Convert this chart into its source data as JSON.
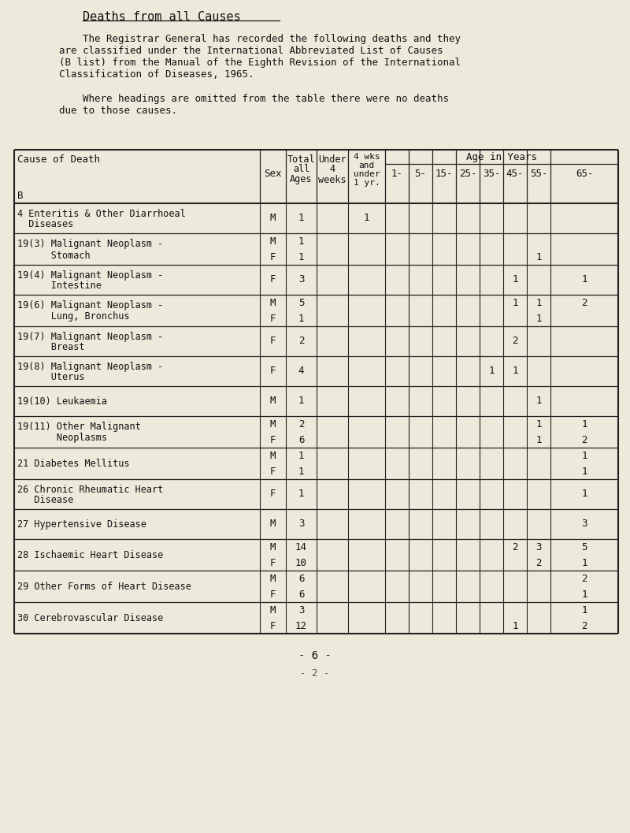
{
  "title": "Deaths from all Causes",
  "intro_text_line1": "    The Registrar General has recorded the following deaths and they",
  "intro_text_line2": "are classified under the International Abbreviated List of Causes",
  "intro_text_line3": "(B list) from the Manual of the Eighth Revision of the International",
  "intro_text_line4": "Classification of Diseases, 1965.",
  "intro_text_line5": "",
  "intro_text_line6": "    Where headings are omitted from the table there were no deaths",
  "intro_text_line7": "due to those causes.",
  "rows": [
    {
      "cause_line1": "4 Enteritis & Other Diarrhoeal",
      "cause_line2": "  Diseases",
      "sex": [
        "M"
      ],
      "total": [
        "1"
      ],
      "under4wks": [
        ""
      ],
      "wks_1yr": [
        "1"
      ],
      "age1": [
        ""
      ],
      "age5": [
        ""
      ],
      "age15": [
        ""
      ],
      "age25": [
        ""
      ],
      "age35": [
        ""
      ],
      "age45": [
        ""
      ],
      "age55": [
        ""
      ],
      "age65": [
        ""
      ]
    },
    {
      "cause_line1": "19(3) Malignant Neoplasm -",
      "cause_line2": "      Stomach",
      "sex": [
        "M",
        "F"
      ],
      "total": [
        "1",
        "1"
      ],
      "under4wks": [
        "",
        ""
      ],
      "wks_1yr": [
        "",
        ""
      ],
      "age1": [
        "",
        ""
      ],
      "age5": [
        "",
        ""
      ],
      "age15": [
        "",
        ""
      ],
      "age25": [
        "",
        ""
      ],
      "age35": [
        "",
        ""
      ],
      "age45": [
        "",
        ""
      ],
      "age55": [
        "",
        "1"
      ],
      "age65": [
        "",
        ""
      ]
    },
    {
      "cause_line1": "19(4) Malignant Neoplasm -",
      "cause_line2": "      Intestine",
      "sex": [
        "F"
      ],
      "total": [
        "3"
      ],
      "under4wks": [
        ""
      ],
      "wks_1yr": [
        ""
      ],
      "age1": [
        ""
      ],
      "age5": [
        ""
      ],
      "age15": [
        ""
      ],
      "age25": [
        ""
      ],
      "age35": [
        ""
      ],
      "age45": [
        "1"
      ],
      "age55": [
        ""
      ],
      "age65": [
        "1"
      ]
    },
    {
      "cause_line1": "19(6) Malignant Neoplasm -",
      "cause_line2": "      Lung, Bronchus",
      "sex": [
        "M",
        "F"
      ],
      "total": [
        "5",
        "1"
      ],
      "under4wks": [
        "",
        ""
      ],
      "wks_1yr": [
        "",
        ""
      ],
      "age1": [
        "",
        ""
      ],
      "age5": [
        "",
        ""
      ],
      "age15": [
        "",
        ""
      ],
      "age25": [
        "",
        ""
      ],
      "age35": [
        "",
        ""
      ],
      "age45": [
        "1",
        ""
      ],
      "age55": [
        "1",
        "1"
      ],
      "age65": [
        "2",
        ""
      ]
    },
    {
      "cause_line1": "19(7) Malignant Neoplasm -",
      "cause_line2": "      Breast",
      "sex": [
        "F"
      ],
      "total": [
        "2"
      ],
      "under4wks": [
        ""
      ],
      "wks_1yr": [
        ""
      ],
      "age1": [
        ""
      ],
      "age5": [
        ""
      ],
      "age15": [
        ""
      ],
      "age25": [
        ""
      ],
      "age35": [
        ""
      ],
      "age45": [
        "2"
      ],
      "age55": [
        ""
      ],
      "age65": [
        ""
      ]
    },
    {
      "cause_line1": "19(8) Malignant Neoplasm -",
      "cause_line2": "      Uterus",
      "sex": [
        "F"
      ],
      "total": [
        "4"
      ],
      "under4wks": [
        ""
      ],
      "wks_1yr": [
        ""
      ],
      "age1": [
        ""
      ],
      "age5": [
        ""
      ],
      "age15": [
        ""
      ],
      "age25": [
        ""
      ],
      "age35": [
        "1"
      ],
      "age45": [
        "1"
      ],
      "age55": [
        ""
      ],
      "age65": [
        ""
      ]
    },
    {
      "cause_line1": "19(10) Leukaemia",
      "cause_line2": "",
      "sex": [
        "M"
      ],
      "total": [
        "1"
      ],
      "under4wks": [
        ""
      ],
      "wks_1yr": [
        ""
      ],
      "age1": [
        ""
      ],
      "age5": [
        ""
      ],
      "age15": [
        ""
      ],
      "age25": [
        ""
      ],
      "age35": [
        ""
      ],
      "age45": [
        ""
      ],
      "age55": [
        "1"
      ],
      "age65": [
        ""
      ]
    },
    {
      "cause_line1": "19(11) Other Malignant",
      "cause_line2": "       Neoplasms",
      "sex": [
        "M",
        "F"
      ],
      "total": [
        "2",
        "6"
      ],
      "under4wks": [
        "",
        ""
      ],
      "wks_1yr": [
        "",
        ""
      ],
      "age1": [
        "",
        ""
      ],
      "age5": [
        "",
        ""
      ],
      "age15": [
        "",
        ""
      ],
      "age25": [
        "",
        ""
      ],
      "age35": [
        "",
        ""
      ],
      "age45": [
        "",
        ""
      ],
      "age55": [
        "1",
        "1"
      ],
      "age65": [
        "1",
        "2"
      ]
    },
    {
      "cause_line1": "21 Diabetes Mellitus",
      "cause_line2": "",
      "sex": [
        "M",
        "F"
      ],
      "total": [
        "1",
        "1"
      ],
      "under4wks": [
        "",
        ""
      ],
      "wks_1yr": [
        "",
        ""
      ],
      "age1": [
        "",
        ""
      ],
      "age5": [
        "",
        ""
      ],
      "age15": [
        "",
        ""
      ],
      "age25": [
        "",
        ""
      ],
      "age35": [
        "",
        ""
      ],
      "age45": [
        "",
        ""
      ],
      "age55": [
        "",
        ""
      ],
      "age65": [
        "1",
        "1"
      ]
    },
    {
      "cause_line1": "26 Chronic Rheumatic Heart",
      "cause_line2": "   Disease",
      "sex": [
        "F"
      ],
      "total": [
        "1"
      ],
      "under4wks": [
        ""
      ],
      "wks_1yr": [
        ""
      ],
      "age1": [
        ""
      ],
      "age5": [
        ""
      ],
      "age15": [
        ""
      ],
      "age25": [
        ""
      ],
      "age35": [
        ""
      ],
      "age45": [
        ""
      ],
      "age55": [
        ""
      ],
      "age65": [
        "1"
      ]
    },
    {
      "cause_line1": "27 Hypertensive Disease",
      "cause_line2": "",
      "sex": [
        "M"
      ],
      "total": [
        "3"
      ],
      "under4wks": [
        ""
      ],
      "wks_1yr": [
        ""
      ],
      "age1": [
        ""
      ],
      "age5": [
        ""
      ],
      "age15": [
        ""
      ],
      "age25": [
        ""
      ],
      "age35": [
        ""
      ],
      "age45": [
        ""
      ],
      "age55": [
        ""
      ],
      "age65": [
        "3"
      ]
    },
    {
      "cause_line1": "28 Ischaemic Heart Disease",
      "cause_line2": "",
      "sex": [
        "M",
        "F"
      ],
      "total": [
        "14",
        "10"
      ],
      "under4wks": [
        "",
        ""
      ],
      "wks_1yr": [
        "",
        ""
      ],
      "age1": [
        "",
        ""
      ],
      "age5": [
        "",
        ""
      ],
      "age15": [
        "",
        ""
      ],
      "age25": [
        "",
        ""
      ],
      "age35": [
        "",
        ""
      ],
      "age45": [
        "2",
        ""
      ],
      "age55": [
        "3",
        "2"
      ],
      "age65": [
        "5",
        "1"
      ]
    },
    {
      "cause_line1": "29 Other Forms of Heart Disease",
      "cause_line2": "",
      "sex": [
        "M",
        "F"
      ],
      "total": [
        "6",
        "6"
      ],
      "under4wks": [
        "",
        ""
      ],
      "wks_1yr": [
        "",
        ""
      ],
      "age1": [
        "",
        ""
      ],
      "age5": [
        "",
        ""
      ],
      "age15": [
        "",
        ""
      ],
      "age25": [
        "",
        ""
      ],
      "age35": [
        "",
        ""
      ],
      "age45": [
        "",
        ""
      ],
      "age55": [
        "",
        ""
      ],
      "age65": [
        "2",
        "1"
      ]
    },
    {
      "cause_line1": "30 Cerebrovascular Disease",
      "cause_line2": "",
      "sex": [
        "M",
        "F"
      ],
      "total": [
        "3",
        "12"
      ],
      "under4wks": [
        "",
        ""
      ],
      "wks_1yr": [
        "",
        ""
      ],
      "age1": [
        "",
        ""
      ],
      "age5": [
        "",
        ""
      ],
      "age15": [
        "",
        ""
      ],
      "age25": [
        "",
        ""
      ],
      "age35": [
        "",
        ""
      ],
      "age45": [
        "",
        "1"
      ],
      "age55": [
        "",
        ""
      ],
      "age65": [
        "1",
        "2"
      ]
    }
  ],
  "footer": "- 6 -",
  "footer2": "- 2 -",
  "bg_color": "#edeadb",
  "text_color": "#111111",
  "line_color": "#222222"
}
